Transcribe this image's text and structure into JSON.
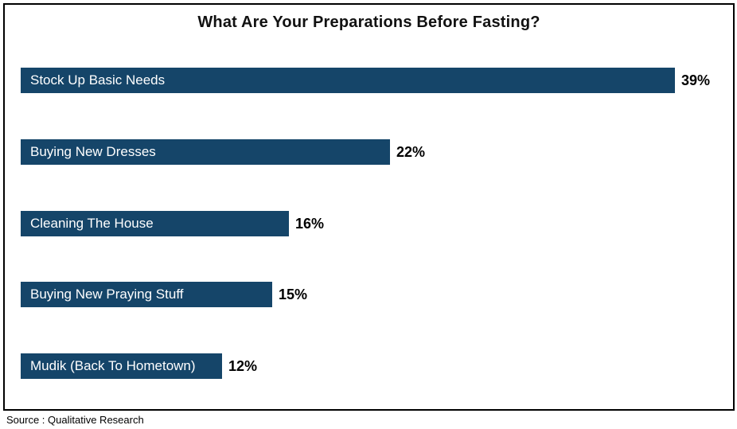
{
  "title": "What Are Your Preparations Before Fasting?",
  "source": "Source : Qualitative Research",
  "colors": {
    "bar": "#154569",
    "bar_label": "#ffffff",
    "value_label": "#000000",
    "frame_border": "#000000",
    "background": "#ffffff"
  },
  "chart_data": {
    "type": "bar",
    "orientation": "horizontal",
    "title": "What Are Your Preparations Before Fasting?",
    "categories": [
      "Stock Up Basic Needs",
      "Buying New Dresses",
      "Cleaning The House",
      "Buying New Praying Stuff",
      "Mudik (Back To Hometown)"
    ],
    "values": [
      39,
      22,
      16,
      15,
      12
    ],
    "value_labels": [
      "39%",
      "22%",
      "16%",
      "15%",
      "12%"
    ],
    "xlabel": "",
    "ylabel": "",
    "xlim": [
      0,
      39
    ],
    "grid": false,
    "legend": false,
    "category_labels_position": "inside-start",
    "value_labels_position": "outside-end",
    "source": "Source : Qualitative Research"
  }
}
